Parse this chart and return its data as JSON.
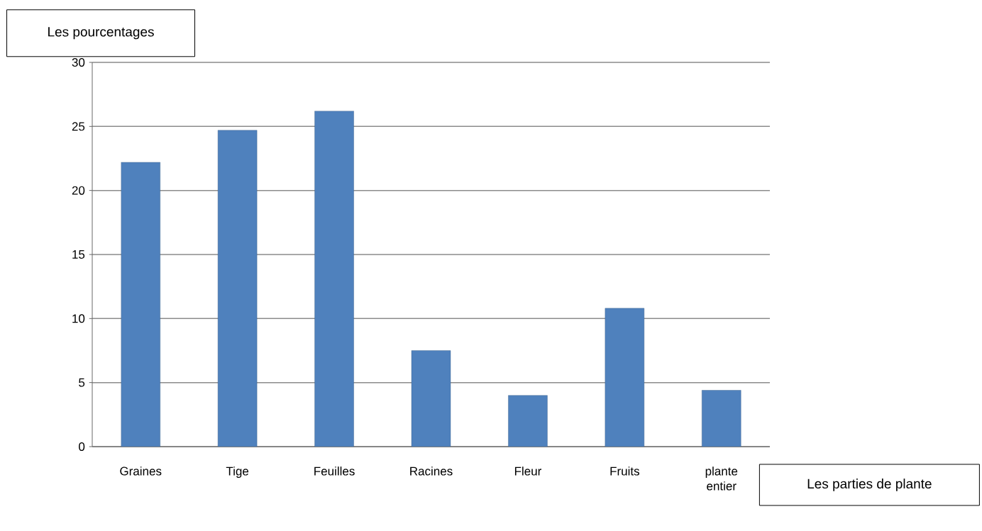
{
  "chart_data": {
    "type": "bar",
    "xlabel": "Les parties de  plante",
    "ylabel": "Les pourcentages",
    "categories": [
      "Graines",
      "Tige",
      "Feuilles",
      "Racines",
      "Fleur",
      "Fruits",
      "plante entier"
    ],
    "values": [
      22.2,
      24.7,
      26.2,
      7.5,
      4,
      10.8,
      4.4
    ],
    "color": "#4f81bd",
    "ylim": [
      0,
      30
    ],
    "yticks": [
      0,
      5,
      10,
      15,
      20,
      25,
      30
    ],
    "grid": "y"
  }
}
